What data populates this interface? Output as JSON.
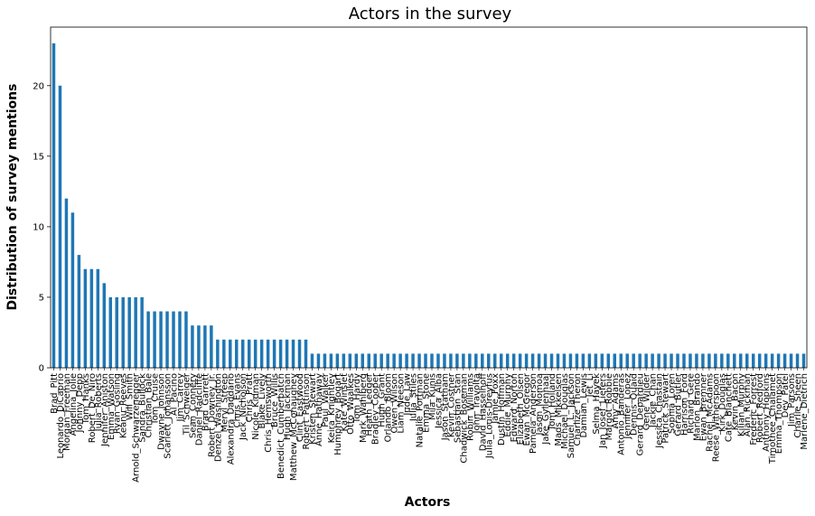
{
  "chart_data": {
    "type": "bar",
    "title": "Actors in the survey",
    "xlabel": "Actors",
    "ylabel": "Distribution of survey mentions",
    "ylim": [
      0,
      24.15
    ],
    "yticks": [
      0,
      5,
      10,
      15,
      20
    ],
    "grid": false,
    "bar_color": "#1f77b4",
    "categories": [
      "Brad_Pitt",
      "Leonardo_DiCaprio",
      "Morgan_Freeman",
      "Angelina_Jolie",
      "Johnny_Depp",
      "Tom_Hanks",
      "Robert_De_Niro",
      "Julia_Roberts",
      "Jennifer_Aniston",
      "Emma_Watson",
      "Ryan_Gosling",
      "Keanu_Reeves",
      "Will_Smith",
      "Arnold_Schwarzenegger",
      "Sandra_Bullock",
      "Christian_Bale",
      "Tom_Cruise",
      "Dwayne_Johnson",
      "Scarlett_Johansson",
      "Al_Pacino",
      "Jim_Carrey",
      "Til_Schweiger",
      "Sean_Connery",
      "Daniel_Radcliffe",
      "Brad_Garrett",
      "Robert_Downey_Jr.",
      "Denzel_Washington",
      "Meryl_Streep",
      "Alexandra_Daddario",
      "Chris_Evans",
      "Jack_Nicholson",
      "Chris_Pratt",
      "Nicole_Kidman",
      "Blake_Lively",
      "Chris_Hemsworth",
      "Bruce_Willis",
      "Benedict_Cumberbatch",
      "Hugh_Jackman",
      "Matthew_McConaughey",
      "Clint_Eastwood",
      "Robert_Pattinson",
      "Kristen_Stewart",
      "Anne_Hathaway",
      "Paul_Walker",
      "Keira_Knightley",
      "Humphrey_Bogart",
      "Kate_Winslet",
      "Otto_Waalkes",
      "Tom_Hardy",
      "Mark_Wahlberg",
      "Heath_Ledger",
      "Bradley_Cooper",
      "Hugh_Grant",
      "Orlando_Bloom",
      "Owen_Wilson",
      "Liam_Neeson",
      "Jude_Law",
      "Julia_Stiles",
      "Natalie_Portman",
      "Emma_Stone",
      "Mila_Kunis",
      "Jessica_Alba",
      "Jason_Statham",
      "Kevin_Costner",
      "Sebastian_Stan",
      "Chadwick_Boseman",
      "Robin_Williams",
      "John_Travolta",
      "David_Hasselhoff",
      "Julia_Louis-Dreyfus",
      "Jamie_Foxx",
      "Dustin_Hoffman",
      "Eddie_Murphy",
      "Edward_Norton",
      "Elizabeth_Olsen",
      "Ewan_McGregor",
      "Pamela_Anderson",
      "Jason_Momoa",
      "Jake_Gyllenhaal",
      "Tom_Holland",
      "Mads_Mikkelsen",
      "Michael_Douglas",
      "Samuel_L._Jackson",
      "Charlize_Theron",
      "Damian_Lewis",
      "Jet_Li",
      "Selma_Hayek",
      "Jan_Josef_Liefers",
      "Margot_Robbie",
      "Amy_Adams",
      "Antonio_Banderas",
      "Jennifer_Lopez",
      "Dennis_Quaid",
      "Gerard_Depardieu",
      "Gene_Wilder",
      "Jackie_Chan",
      "Jessica_Chastain",
      "Patrick_Stewart",
      "Sophia_Loren",
      "Gerard_Butler",
      "Harrison_Ford",
      "Richard_Gere",
      "Marlon_Brando",
      "Ewan_Bremner",
      "Rachel_McAdams",
      "Reese_Witherspoon",
      "Kirk_Douglas",
      "Cate_Blanchett",
      "Kevin_Bacon",
      "Kilian_Murphy",
      "Alan_Rickman",
      "Frederic_Forrest",
      "Robert_Redford",
      "Anthony_Hopkins",
      "Timothee_Chalamet",
      "Emma_Thompson",
      "Dev_Patel",
      "Jim_Parsons",
      "Charlie_Sheen",
      "Marlene_Dietrich"
    ],
    "values": [
      23,
      20,
      12,
      11,
      8,
      7,
      7,
      7,
      6,
      5,
      5,
      5,
      5,
      5,
      5,
      4,
      4,
      4,
      4,
      4,
      4,
      4,
      3,
      3,
      3,
      3,
      2,
      2,
      2,
      2,
      2,
      2,
      2,
      2,
      2,
      2,
      2,
      2,
      2,
      2,
      2,
      1,
      1,
      1,
      1,
      1,
      1,
      1,
      1,
      1,
      1,
      1,
      1,
      1,
      1,
      1,
      1,
      1,
      1,
      1,
      1,
      1,
      1,
      1,
      1,
      1,
      1,
      1,
      1,
      1,
      1,
      1,
      1,
      1,
      1,
      1,
      1,
      1,
      1,
      1,
      1,
      1,
      1,
      1,
      1,
      1,
      1,
      1,
      1,
      1,
      1,
      1,
      1,
      1,
      1,
      1,
      1,
      1,
      1,
      1,
      1,
      1,
      1,
      1,
      1,
      1,
      1,
      1,
      1,
      1,
      1,
      1,
      1,
      1,
      1,
      1,
      1,
      1,
      1,
      1
    ]
  }
}
